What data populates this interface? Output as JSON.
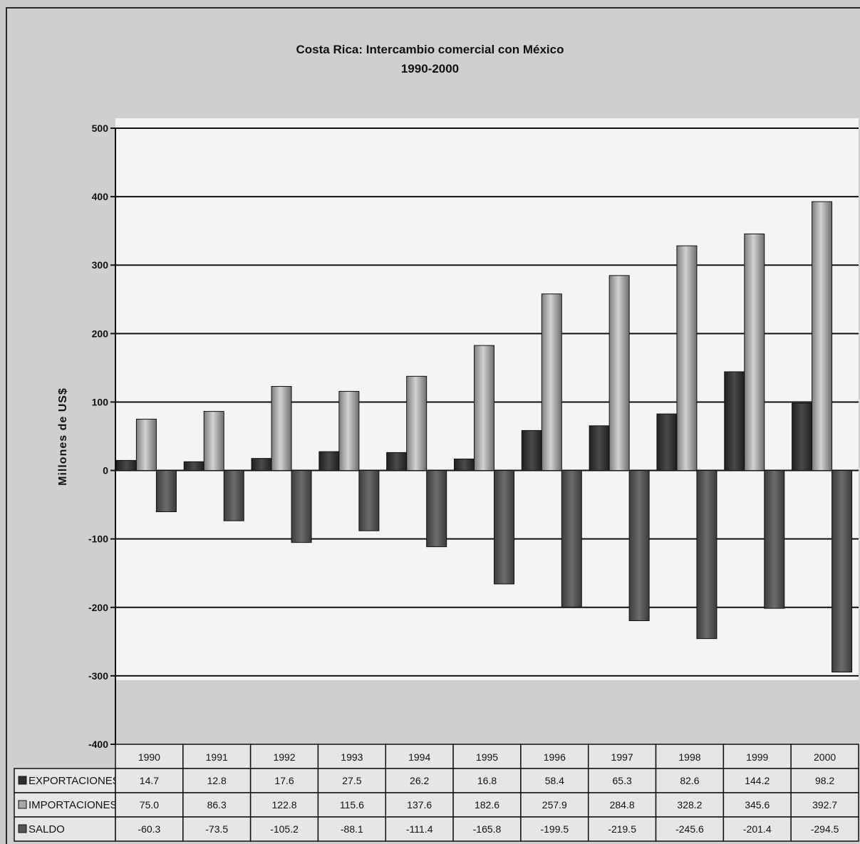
{
  "chart_data": {
    "type": "bar",
    "title": "Costa Rica: Intercambio comercial con México",
    "subtitle": "1990-2000",
    "ylabel": "Millones de US$",
    "xlabel": "",
    "ylim": [
      -400,
      500
    ],
    "yticks": [
      500,
      400,
      300,
      200,
      100,
      0,
      -100,
      -200,
      -300,
      -400
    ],
    "grid": true,
    "legend": "data-table",
    "categories": [
      "1990",
      "1991",
      "1992",
      "1993",
      "1994",
      "1995",
      "1996",
      "1997",
      "1998",
      "1999",
      "2000"
    ],
    "series": [
      {
        "name": "EXPORTACIONES",
        "color": "#3a3a3a",
        "values": [
          14.7,
          12.8,
          17.6,
          27.5,
          26.2,
          16.8,
          58.4,
          65.3,
          82.6,
          144.2,
          98.2
        ],
        "labels": [
          "14.7",
          "12.8",
          "17.6",
          "27.5",
          "26.2",
          "16.8",
          "58.4",
          "65.3",
          "82.6",
          "144.2",
          "98.2"
        ]
      },
      {
        "name": "IMPORTACIONES",
        "color": "#a6a6a6",
        "values": [
          75.0,
          86.3,
          122.8,
          115.6,
          137.6,
          182.6,
          257.9,
          284.8,
          328.2,
          345.6,
          392.7
        ],
        "labels": [
          "75.0",
          "86.3",
          "122.8",
          "115.6",
          "137.6",
          "182.6",
          "257.9",
          "284.8",
          "328.2",
          "345.6",
          "392.7"
        ]
      },
      {
        "name": "SALDO",
        "color": "#5a5a5a",
        "values": [
          -60.3,
          -73.5,
          -105.2,
          -88.1,
          -111.4,
          -165.8,
          -199.5,
          -219.5,
          -245.6,
          -201.4,
          -294.5
        ],
        "labels": [
          "-60.3",
          "-73.5",
          "-105.2",
          "-88.1",
          "-111.4",
          "-165.8",
          "-199.5",
          "-219.5",
          "-245.6",
          "-201.4",
          "-294.5"
        ]
      }
    ]
  }
}
